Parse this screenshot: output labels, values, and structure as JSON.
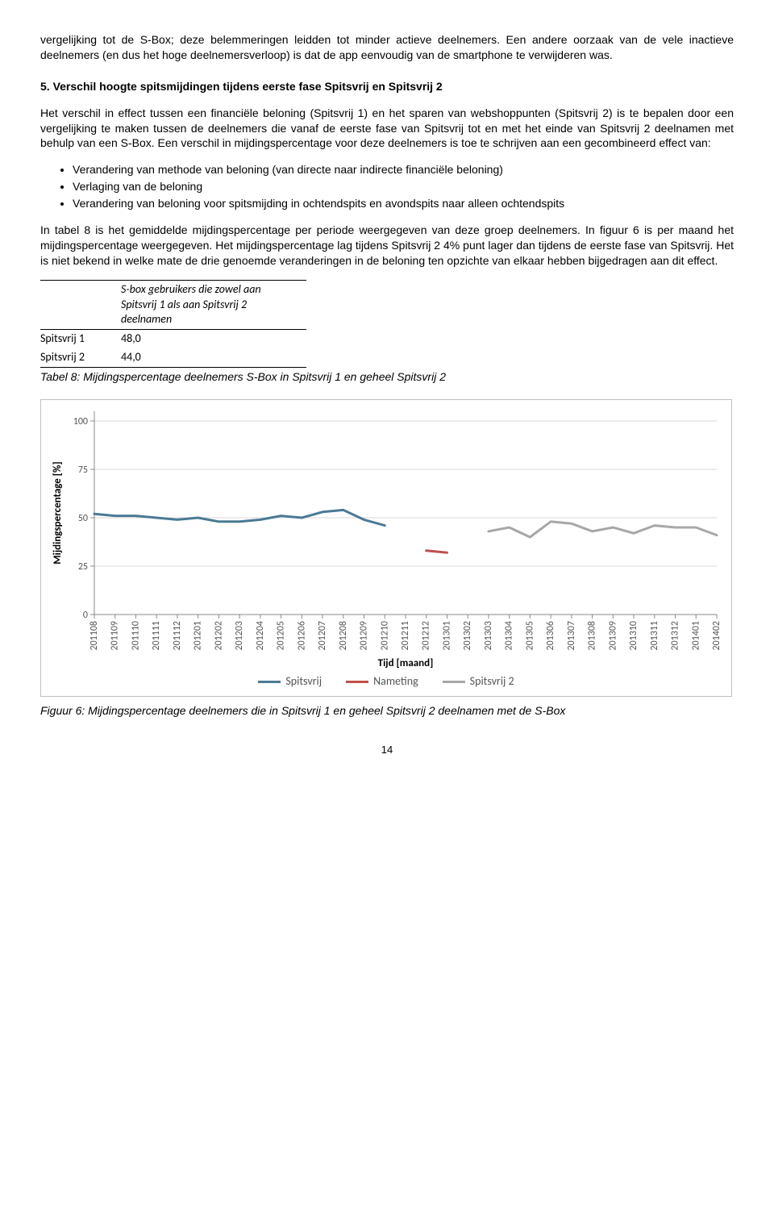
{
  "intro_para": "vergelijking tot de S-Box; deze belemmeringen leidden tot minder actieve deelnemers. Een andere oorzaak van de vele inactieve deelnemers (en dus het hoge deelnemersverloop) is dat de app eenvoudig van de smartphone te verwijderen was.",
  "heading": "5. Verschil hoogte spitsmijdingen tijdens eerste fase Spitsvrij en Spitsvrij 2",
  "para1": "Het verschil in effect tussen een financiële beloning (Spitsvrij 1) en het sparen van webshoppunten (Spitsvrij 2) is te bepalen door een vergelijking te maken tussen de deelnemers die vanaf de eerste fase van Spitsvrij tot en met het einde van Spitsvrij 2 deelnamen met behulp van een S-Box. Een verschil in mijdingspercentage voor deze deelnemers is toe te schrijven aan een gecombineerd effect van:",
  "bullets": [
    "Verandering van methode van beloning (van directe naar indirecte financiële beloning)",
    "Verlaging van de beloning",
    "Verandering van beloning voor spitsmijding in ochtendspits en avondspits naar alleen ochtendspits"
  ],
  "para2": "In tabel 8 is het gemiddelde mijdingspercentage per periode weergegeven van deze groep deelnemers. In figuur 6 is per maand het mijdingspercentage weergegeven. Het mijdingspercentage lag tijdens Spitsvrij 2 4% punt lager dan tijdens de eerste fase van Spitsvrij. Het is niet bekend in welke mate de drie genoemde veranderingen in de beloning ten opzichte van elkaar hebben bijgedragen aan dit effect.",
  "table": {
    "header": "S-box gebruikers die zowel aan Spitsvrij 1 als aan Spitsvrij 2 deelnamen",
    "rows": [
      {
        "label": "Spitsvrij 1",
        "value": "48,0"
      },
      {
        "label": "Spitsvrij 2",
        "value": "44,0"
      }
    ]
  },
  "table_caption": "Tabel 8: Mijdingspercentage deelnemers S-Box in Spitsvrij 1 en geheel Spitsvrij 2",
  "chart": {
    "type": "line",
    "y_label": "Mijdingspercentage [%]",
    "x_label": "Tijd [maand]",
    "y_ticks": [
      0,
      25,
      50,
      75,
      100
    ],
    "ylim": [
      0,
      105
    ],
    "x_categories": [
      "201108",
      "201109",
      "201110",
      "201111",
      "201112",
      "201201",
      "201202",
      "201203",
      "201204",
      "201205",
      "201206",
      "201207",
      "201208",
      "201209",
      "201210",
      "201211",
      "201212",
      "201301",
      "201302",
      "201303",
      "201304",
      "201305",
      "201306",
      "201307",
      "201308",
      "201309",
      "201310",
      "201311",
      "201312",
      "201401",
      "201402"
    ],
    "series": [
      {
        "name": "Spitsvrij",
        "color": "#4a7a94",
        "width": 3,
        "data": [
          52,
          51,
          51,
          50,
          49,
          50,
          48,
          48,
          49,
          51,
          50,
          53,
          54,
          49,
          46,
          null,
          null,
          null,
          null,
          null,
          null,
          null,
          null,
          null,
          null,
          null,
          null,
          null,
          null,
          null,
          null
        ]
      },
      {
        "name": "Nameting",
        "color": "#c0504d",
        "width": 3,
        "data": [
          null,
          null,
          null,
          null,
          null,
          null,
          null,
          null,
          null,
          null,
          null,
          null,
          null,
          null,
          null,
          null,
          33,
          32,
          null,
          null,
          null,
          null,
          null,
          null,
          null,
          null,
          null,
          null,
          null,
          null,
          null
        ]
      },
      {
        "name": "Spitsvrij 2",
        "color": "#a7a7a7",
        "width": 3,
        "data": [
          null,
          null,
          null,
          null,
          null,
          null,
          null,
          null,
          null,
          null,
          null,
          null,
          null,
          null,
          null,
          null,
          null,
          null,
          null,
          43,
          45,
          40,
          48,
          47,
          43,
          45,
          42,
          46,
          45,
          45,
          41
        ]
      }
    ],
    "plot_bg": "#ffffff",
    "axis_color": "#888888",
    "grid_color": "#d9d9d9",
    "tick_color": "#888888",
    "label_fontsize": 13,
    "tick_fontsize": 12,
    "label_font": "Calibri, sans-serif",
    "label_color": "#555555"
  },
  "figure_caption": "Figuur 6: Mijdingspercentage deelnemers die in Spitsvrij 1 en geheel Spitsvrij 2 deelnamen met de S-Box",
  "page_number": "14"
}
